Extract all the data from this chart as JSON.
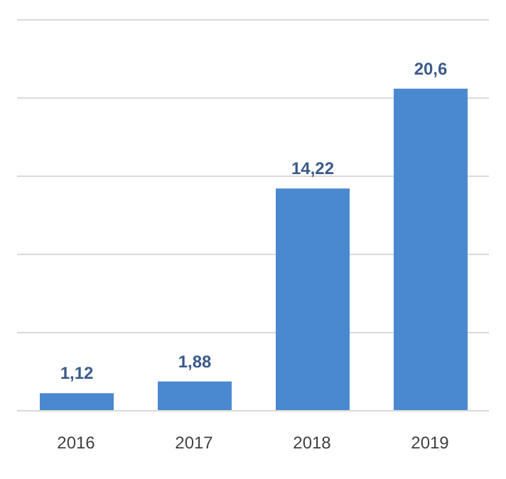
{
  "chart_data": {
    "type": "bar",
    "categories": [
      "2016",
      "2017",
      "2018",
      "2019"
    ],
    "values": [
      1.12,
      1.88,
      14.22,
      20.6
    ],
    "value_labels": [
      "1,12",
      "1,88",
      "14,22",
      "20,6"
    ],
    "color": "#4a89d0",
    "ylim": [
      0,
      25
    ],
    "yticks": [
      {
        "value": 0,
        "label": null
      },
      {
        "value": 5,
        "label": null
      },
      {
        "value": 10,
        "label": null
      },
      {
        "value": 15,
        "label": null
      },
      {
        "value": 20,
        "label": null
      },
      {
        "value": 25,
        "label": null
      }
    ],
    "tick_labels": "x",
    "grid": "y"
  }
}
